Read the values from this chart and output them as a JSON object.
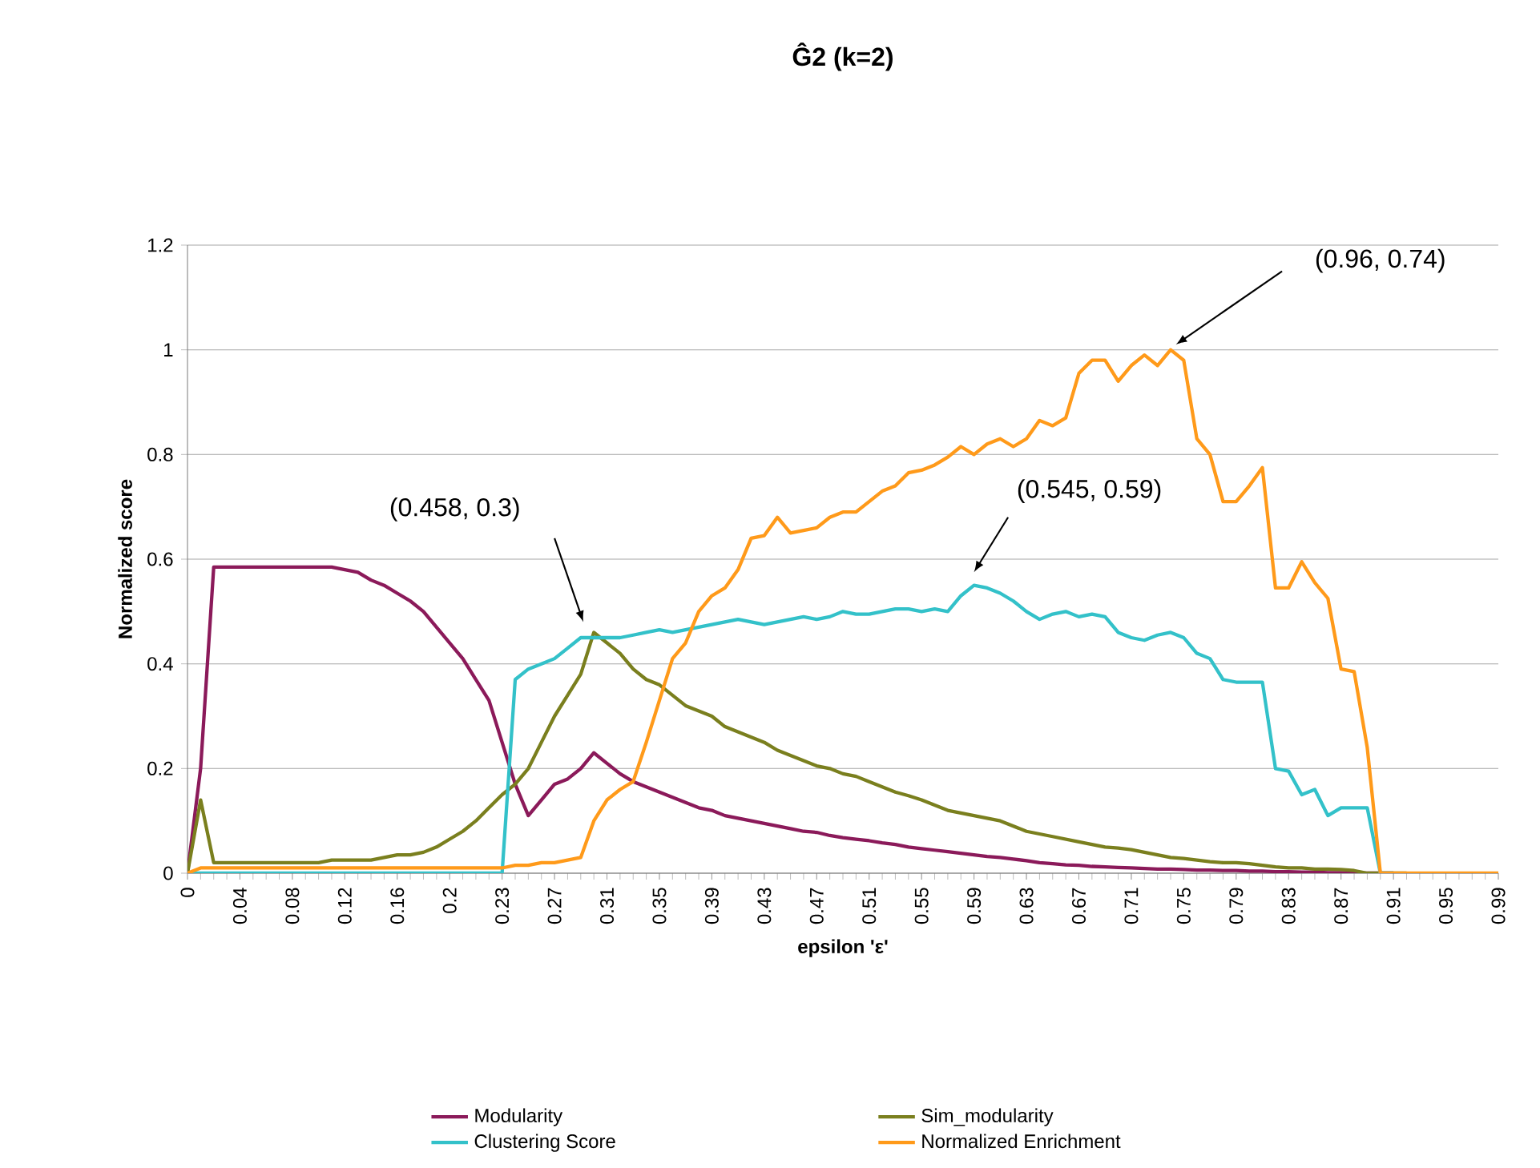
{
  "chart_data": {
    "type": "line",
    "title": "Ĝ2 (k=2)",
    "xlabel": "epsilon 'ε'",
    "ylabel": "Normalized score",
    "categories": [
      "0",
      null,
      null,
      null,
      "0.04",
      null,
      null,
      null,
      "0.08",
      null,
      null,
      null,
      "0.12",
      null,
      null,
      null,
      "0.16",
      null,
      null,
      null,
      "0.2",
      null,
      null,
      null,
      "0.23",
      null,
      null,
      null,
      "0.27",
      null,
      null,
      null,
      "0.31",
      null,
      null,
      null,
      "0.35",
      null,
      null,
      null,
      "0.39",
      null,
      null,
      null,
      "0.43",
      null,
      null,
      null,
      "0.47",
      null,
      null,
      null,
      "0.51",
      null,
      null,
      null,
      "0.55",
      null,
      null,
      null,
      "0.59",
      null,
      null,
      null,
      "0.63",
      null,
      null,
      null,
      "0.67",
      null,
      null,
      null,
      "0.71",
      null,
      null,
      null,
      "0.75",
      null,
      null,
      null,
      "0.79",
      null,
      null,
      null,
      "0.83",
      null,
      null,
      null,
      "0.87",
      null,
      null,
      null,
      "0.91",
      null,
      null,
      null,
      "0.95",
      null,
      null,
      null,
      "0.99"
    ],
    "series": [
      {
        "name": "Modularity",
        "color": "#8b1a5a",
        "values": [
          0,
          0.2,
          0.585,
          0.585,
          0.585,
          0.585,
          0.585,
          0.585,
          0.585,
          0.585,
          0.585,
          0.585,
          0.58,
          0.575,
          0.56,
          0.55,
          0.535,
          0.52,
          0.5,
          0.47,
          0.44,
          0.41,
          0.37,
          0.33,
          0.25,
          0.17,
          0.11,
          0.14,
          0.17,
          0.18,
          0.2,
          0.23,
          0.21,
          0.19,
          0.175,
          0.165,
          0.155,
          0.145,
          0.135,
          0.125,
          0.12,
          0.11,
          0.105,
          0.1,
          0.095,
          0.09,
          0.085,
          0.08,
          0.078,
          0.072,
          0.068,
          0.065,
          0.062,
          0.058,
          0.055,
          0.05,
          0.047,
          0.044,
          0.041,
          0.038,
          0.035,
          0.032,
          0.03,
          0.027,
          0.024,
          0.02,
          0.018,
          0.016,
          0.015,
          0.013,
          0.012,
          0.011,
          0.01,
          0.009,
          0.008,
          0.008,
          0.007,
          0.006,
          0.006,
          0.005,
          0.005,
          0.004,
          0.004,
          0.003,
          0.003,
          0.002,
          0.002,
          0.001,
          0.001,
          0,
          0,
          0,
          0,
          null,
          null,
          null,
          null,
          null,
          null,
          null,
          null
        ]
      },
      {
        "name": "Sim_modularity",
        "color": "#7a7f1e",
        "values": [
          0,
          0.14,
          0.02,
          0.02,
          0.02,
          0.02,
          0.02,
          0.02,
          0.02,
          0.02,
          0.02,
          0.025,
          0.025,
          0.025,
          0.025,
          0.03,
          0.035,
          0.035,
          0.04,
          0.05,
          0.065,
          0.08,
          0.1,
          0.125,
          0.15,
          0.17,
          0.2,
          0.25,
          0.3,
          0.34,
          0.38,
          0.46,
          0.44,
          0.42,
          0.39,
          0.37,
          0.36,
          0.34,
          0.32,
          0.31,
          0.3,
          0.28,
          0.27,
          0.26,
          0.25,
          0.235,
          0.225,
          0.215,
          0.205,
          0.2,
          0.19,
          0.185,
          0.175,
          0.165,
          0.155,
          0.148,
          0.14,
          0.13,
          0.12,
          0.115,
          0.11,
          0.105,
          0.1,
          0.09,
          0.08,
          0.075,
          0.07,
          0.065,
          0.06,
          0.055,
          0.05,
          0.048,
          0.045,
          0.04,
          0.035,
          0.03,
          0.028,
          0.025,
          0.022,
          0.02,
          0.02,
          0.018,
          0.015,
          0.012,
          0.01,
          0.01,
          0.008,
          0.008,
          0.007,
          0.005,
          0,
          0,
          0,
          0,
          null,
          null,
          null,
          null,
          null,
          null,
          null
        ]
      },
      {
        "name": "Clustering Score",
        "color": "#33c1c9",
        "values": [
          0,
          0,
          0,
          0,
          0,
          0,
          0,
          0,
          0,
          0,
          0,
          0,
          0,
          0,
          0,
          0,
          0,
          0,
          0,
          0,
          0,
          0,
          0,
          0,
          0,
          0.37,
          0.39,
          0.4,
          0.41,
          0.43,
          0.45,
          0.45,
          0.45,
          0.45,
          0.455,
          0.46,
          0.465,
          0.46,
          0.465,
          0.47,
          0.475,
          0.48,
          0.485,
          0.48,
          0.475,
          0.48,
          0.485,
          0.49,
          0.485,
          0.49,
          0.5,
          0.495,
          0.495,
          0.5,
          0.505,
          0.505,
          0.5,
          0.505,
          0.5,
          0.53,
          0.55,
          0.545,
          0.535,
          0.52,
          0.5,
          0.485,
          0.495,
          0.5,
          0.49,
          0.495,
          0.49,
          0.46,
          0.45,
          0.445,
          0.455,
          0.46,
          0.45,
          0.42,
          0.41,
          0.37,
          0.365,
          0.365,
          0.365,
          0.2,
          0.195,
          0.15,
          0.16,
          0.11,
          0.125,
          0.125,
          0.125,
          0,
          0,
          null,
          null,
          null,
          null,
          null,
          null,
          null,
          null
        ]
      },
      {
        "name": "Normalized Enrichment",
        "color": "#ff9a1a",
        "values": [
          0,
          0.01,
          0.01,
          0.01,
          0.01,
          0.01,
          0.01,
          0.01,
          0.01,
          0.01,
          0.01,
          0.01,
          0.01,
          0.01,
          0.01,
          0.01,
          0.01,
          0.01,
          0.01,
          0.01,
          0.01,
          0.01,
          0.01,
          0.01,
          0.01,
          0.015,
          0.015,
          0.02,
          0.02,
          0.025,
          0.03,
          0.1,
          0.14,
          0.16,
          0.175,
          0.25,
          0.33,
          0.41,
          0.44,
          0.5,
          0.53,
          0.545,
          0.58,
          0.64,
          0.645,
          0.68,
          0.65,
          0.655,
          0.66,
          0.68,
          0.69,
          0.69,
          0.71,
          0.73,
          0.74,
          0.765,
          0.77,
          0.78,
          0.795,
          0.815,
          0.8,
          0.82,
          0.83,
          0.815,
          0.83,
          0.865,
          0.855,
          0.87,
          0.955,
          0.98,
          0.98,
          0.94,
          0.97,
          0.99,
          0.97,
          1.0,
          0.98,
          0.83,
          0.8,
          0.71,
          0.71,
          0.74,
          0.775,
          0.545,
          0.545,
          0.595,
          0.555,
          0.525,
          0.39,
          0.385,
          0.24,
          0,
          0,
          0,
          0,
          0,
          0,
          0,
          0,
          0,
          0
        ]
      }
    ],
    "ylim": [
      0,
      1.2
    ],
    "yticks": [
      0,
      0.2,
      0.4,
      0.6,
      0.8,
      1,
      1.2
    ],
    "grid": "y",
    "legend": "bottom",
    "annotations": [
      "(0.458, 0.3)",
      "(0.545, 0.59)",
      "(0.96, 0.74)"
    ]
  }
}
